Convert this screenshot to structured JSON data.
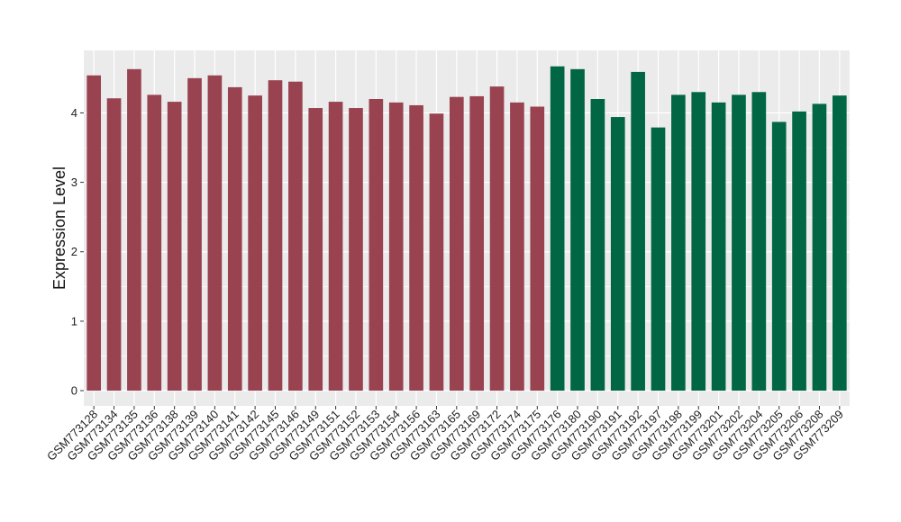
{
  "chart_data": {
    "type": "bar",
    "ylabel": "Expression Level",
    "xlabel": "",
    "ylim": [
      -0.22,
      4.9
    ],
    "yticks": [
      0,
      1,
      2,
      3,
      4
    ],
    "grid": true,
    "panel_background": "#ebebeb",
    "grid_color": "#ffffff",
    "categories": [
      "GSM773128",
      "GSM773134",
      "GSM773135",
      "GSM773136",
      "GSM773138",
      "GSM773139",
      "GSM773140",
      "GSM773141",
      "GSM773142",
      "GSM773145",
      "GSM773146",
      "GSM773149",
      "GSM773151",
      "GSM773152",
      "GSM773153",
      "GSM773154",
      "GSM773156",
      "GSM773163",
      "GSM773165",
      "GSM773169",
      "GSM773172",
      "GSM773174",
      "GSM773175",
      "GSM773176",
      "GSM773180",
      "GSM773190",
      "GSM773191",
      "GSM773192",
      "GSM773197",
      "GSM773198",
      "GSM773199",
      "GSM773201",
      "GSM773202",
      "GSM773204",
      "GSM773205",
      "GSM773206",
      "GSM773208",
      "GSM773209"
    ],
    "values": [
      4.54,
      4.21,
      4.63,
      4.26,
      4.16,
      4.5,
      4.54,
      4.37,
      4.25,
      4.47,
      4.45,
      4.07,
      4.16,
      4.07,
      4.2,
      4.15,
      4.11,
      3.99,
      4.23,
      4.24,
      4.38,
      4.15,
      4.09,
      4.67,
      4.63,
      4.2,
      3.94,
      4.59,
      3.79,
      4.26,
      4.3,
      4.15,
      4.26,
      4.3,
      3.87,
      4.02,
      4.13,
      4.25
    ],
    "groups": [
      {
        "color": "#994250",
        "start": 0,
        "end": 22
      },
      {
        "color": "#006643",
        "start": 23,
        "end": 37
      }
    ]
  }
}
